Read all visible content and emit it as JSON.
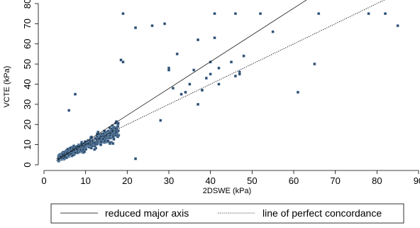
{
  "chart_data": {
    "type": "scatter",
    "title": "",
    "xlabel": "2DSWE (kPa)",
    "ylabel": "VCTE (kPa)",
    "xlim": [
      0,
      90
    ],
    "ylim": [
      0,
      80
    ],
    "xticks": [
      "0",
      "10",
      "20",
      "30",
      "40",
      "50",
      "60",
      "70",
      "80",
      "90"
    ],
    "yticks": [
      "0",
      "10",
      "20",
      "30",
      "40",
      "50",
      "60",
      "70",
      "80"
    ],
    "grid": false,
    "legend_position": "bottom",
    "marker_color": "#2b4a6b",
    "cluster": {
      "count": 600,
      "x_range": [
        3.5,
        18
      ],
      "note": "dense cloud of points concentrated near the diagonal"
    },
    "points": [
      [
        3.5,
        3
      ],
      [
        4,
        4
      ],
      [
        4.5,
        5
      ],
      [
        5,
        4
      ],
      [
        5.5,
        6
      ],
      [
        6,
        5
      ],
      [
        6.5,
        7
      ],
      [
        7,
        8
      ],
      [
        7.5,
        6
      ],
      [
        6,
        27
      ],
      [
        7.5,
        35
      ],
      [
        19,
        75
      ],
      [
        18.5,
        52
      ],
      [
        19,
        51
      ],
      [
        22,
        68
      ],
      [
        22,
        3
      ],
      [
        26,
        69
      ],
      [
        29,
        70
      ],
      [
        28,
        22
      ],
      [
        30,
        48
      ],
      [
        30,
        47
      ],
      [
        31,
        38
      ],
      [
        32,
        55
      ],
      [
        33,
        35
      ],
      [
        34,
        36
      ],
      [
        35,
        40
      ],
      [
        36,
        47
      ],
      [
        37,
        62
      ],
      [
        37,
        30
      ],
      [
        38,
        37
      ],
      [
        39,
        43
      ],
      [
        40,
        51
      ],
      [
        40,
        45
      ],
      [
        41,
        75
      ],
      [
        41,
        63
      ],
      [
        42,
        48
      ],
      [
        42,
        40
      ],
      [
        45,
        51
      ],
      [
        46,
        75
      ],
      [
        46,
        44
      ],
      [
        47,
        46
      ],
      [
        47,
        45
      ],
      [
        48,
        54
      ],
      [
        52,
        75
      ],
      [
        55,
        66
      ],
      [
        61,
        36
      ],
      [
        65,
        50
      ],
      [
        66,
        75
      ],
      [
        78,
        75
      ],
      [
        82,
        75
      ],
      [
        85,
        69
      ]
    ],
    "series": [
      {
        "name": "reduced major axis",
        "line_x": [
          3,
          67
        ],
        "line_y": [
          2,
          87
        ]
      },
      {
        "name": "line of perfect concordance",
        "line_x": [
          3,
          85
        ],
        "line_y": [
          3,
          85
        ]
      }
    ]
  }
}
